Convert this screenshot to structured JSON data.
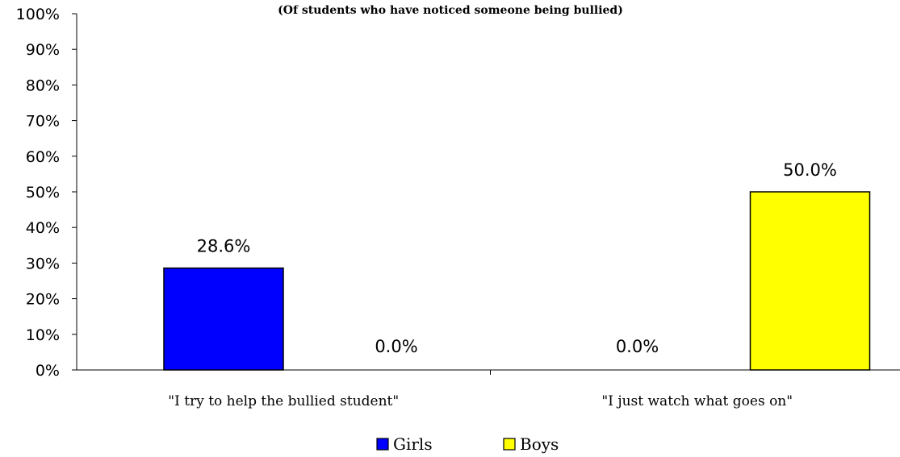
{
  "chart_data": {
    "type": "bar",
    "subtitle": "(Of students who have noticed someone being bullied)",
    "categories": [
      "\"I try to help the bullied student\"",
      "\"I just watch what goes on\""
    ],
    "series": [
      {
        "name": "Girls",
        "values": [
          28.6,
          0.0
        ],
        "color": "#0000FF"
      },
      {
        "name": "Boys",
        "values": [
          0.0,
          50.0
        ],
        "color": "#FFFF00"
      }
    ],
    "data_labels": [
      [
        "28.6%",
        "0.0%"
      ],
      [
        "0.0%",
        "50.0%"
      ]
    ],
    "ylim": [
      0,
      100
    ],
    "yticks": [
      "0%",
      "10%",
      "20%",
      "30%",
      "40%",
      "50%",
      "60%",
      "70%",
      "80%",
      "90%",
      "100%"
    ],
    "grid": false,
    "legend_position": "bottom"
  }
}
